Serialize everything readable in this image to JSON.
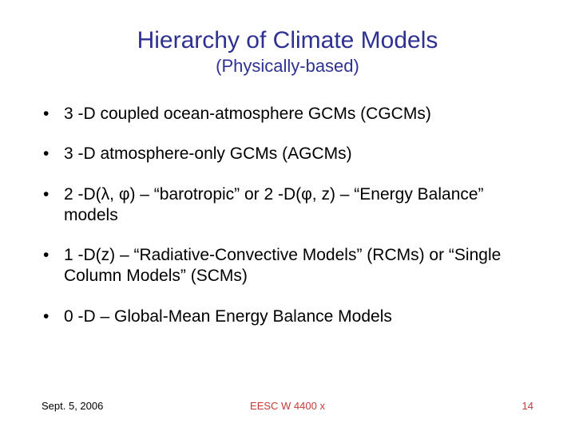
{
  "title": "Hierarchy of Climate Models",
  "subtitle": "(Physically-based)",
  "bullets": [
    "3 -D coupled ocean-atmosphere GCMs (CGCMs)",
    "3 -D atmosphere-only GCMs (AGCMs)",
    "2 -D(λ, φ) – “barotropic” or 2 -D(φ, z) – “Energy Balance” models",
    "1 -D(z) – “Radiative-Convective Models” (RCMs) or “Single Column Models” (SCMs)",
    "0 -D – Global-Mean Energy Balance Models"
  ],
  "footer": {
    "date": "Sept. 5, 2006",
    "course": "EESC W 4400 x",
    "page": "14"
  },
  "colors": {
    "title": "#2e3192",
    "body_text": "#000000",
    "footer_accent": "#c43a3a",
    "background": "#ffffff"
  },
  "typography": {
    "font_family": "Verdana",
    "title_fontsize_pt": 30,
    "subtitle_fontsize_pt": 22,
    "bullet_fontsize_pt": 21,
    "footer_fontsize_pt": 13
  }
}
